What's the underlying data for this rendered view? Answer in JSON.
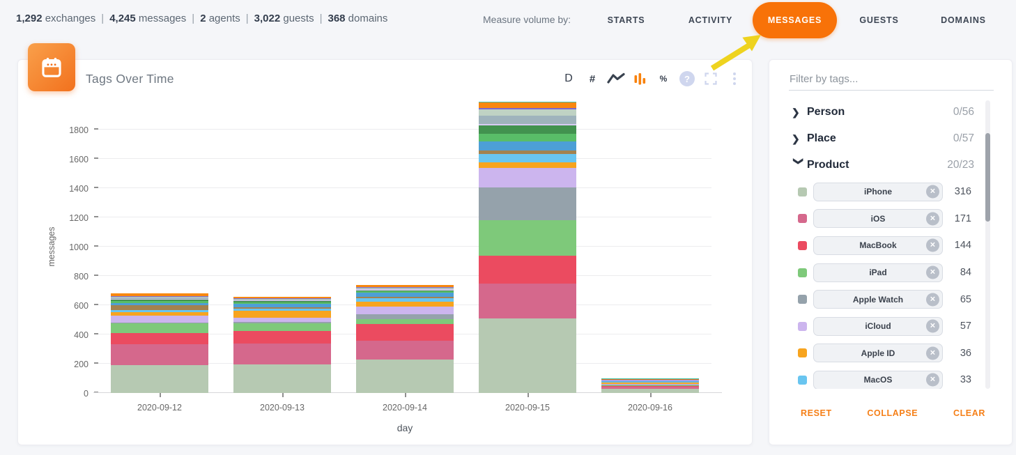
{
  "topbar": {
    "stats": [
      {
        "value": "1,292",
        "label": "exchanges"
      },
      {
        "value": "4,245",
        "label": "messages"
      },
      {
        "value": "2",
        "label": "agents"
      },
      {
        "value": "3,022",
        "label": "guests"
      },
      {
        "value": "368",
        "label": "domains"
      }
    ],
    "measure_label": "Measure volume by:",
    "tabs": [
      {
        "label": "STARTS",
        "active": false
      },
      {
        "label": "ACTIVITY",
        "active": false
      },
      {
        "label": "MESSAGES",
        "active": true
      },
      {
        "label": "GUESTS",
        "active": false
      },
      {
        "label": "DOMAINS",
        "active": false
      }
    ],
    "active_tab_color": "#f87208"
  },
  "annotation": {
    "arrow_color": "#eed31f",
    "points_to": "MESSAGES"
  },
  "calendar_button": {
    "icon": "calendar-icon",
    "color_start": "#f9a04b",
    "color_end": "#f2711d"
  },
  "chart_card": {
    "title": "Tags Over Time",
    "toolbar": {
      "day_label": "D",
      "number_label": "#",
      "percent_label": "%",
      "help_glyph": "?",
      "icons": [
        "line-chart-icon",
        "bar-chart-icon",
        "help-icon",
        "fullscreen-icon",
        "more-icon"
      ],
      "active_icon": "bar-chart-icon",
      "active_color": "#f8820d"
    }
  },
  "chart_data": {
    "type": "bar",
    "stacked": true,
    "title": "Tags Over Time",
    "xlabel": "day",
    "ylabel": "messages",
    "categories": [
      "2020-09-12",
      "2020-09-13",
      "2020-09-14",
      "2020-09-15",
      "2020-09-16"
    ],
    "ylim": [
      0,
      2000
    ],
    "ytick_step": 200,
    "ytick_max": 1800,
    "grid": true,
    "legend_position": "sidebar-right",
    "series": [
      {
        "name": "iPhone",
        "color": "#b6c9b2",
        "values": [
          192,
          197,
          230,
          511,
          30
        ]
      },
      {
        "name": "iOS",
        "color": "#d5688c",
        "values": [
          140,
          140,
          125,
          236,
          12
        ]
      },
      {
        "name": "MacBook",
        "color": "#eb4b60",
        "values": [
          79,
          85,
          115,
          192,
          8
        ]
      },
      {
        "name": "iPad",
        "color": "#7ec97a",
        "values": [
          64,
          56,
          35,
          243,
          5
        ]
      },
      {
        "name": "Apple Watch",
        "color": "#95a2ab",
        "values": [
          6,
          8,
          35,
          221,
          4
        ]
      },
      {
        "name": "iCloud",
        "color": "#ccb5ee",
        "values": [
          48,
          27,
          50,
          135,
          4
        ]
      },
      {
        "name": "Apple ID",
        "color": "#f7a41f",
        "values": [
          24,
          48,
          35,
          40,
          7
        ]
      },
      {
        "name": "MacOS",
        "color": "#69c5f0",
        "values": [
          16,
          15,
          25,
          55,
          5
        ]
      },
      {
        "name": "unlabeled-1",
        "color": "#a3824f",
        "values": [
          29,
          10,
          8,
          22,
          4
        ]
      },
      {
        "name": "unlabeled-2",
        "color": "#4d9fd6",
        "values": [
          18,
          25,
          30,
          65,
          3
        ]
      },
      {
        "name": "unlabeled-3",
        "color": "#59bd68",
        "values": [
          12,
          10,
          8,
          50,
          3
        ]
      },
      {
        "name": "unlabeled-4",
        "color": "#42924f",
        "values": [
          10,
          8,
          6,
          60,
          2
        ]
      },
      {
        "name": "unlabeled-5",
        "color": "#d9cbf4",
        "values": [
          6,
          5,
          6,
          8,
          1
        ]
      },
      {
        "name": "unlabeled-6",
        "color": "#9fb3bc",
        "values": [
          8,
          6,
          8,
          55,
          1
        ]
      },
      {
        "name": "unlabeled-7",
        "color": "#bfd2c4",
        "values": [
          5,
          4,
          5,
          45,
          2
        ]
      },
      {
        "name": "unlabeled-8",
        "color": "#7a68ce",
        "values": [
          3,
          3,
          3,
          8,
          1
        ]
      },
      {
        "name": "unlabeled-9",
        "color": "#f8880f",
        "values": [
          20,
          12,
          12,
          42,
          3
        ]
      },
      {
        "name": "unlabeled-10",
        "color": "#3fc4b0",
        "values": [
          0,
          0,
          0,
          4,
          6
        ]
      }
    ]
  },
  "sidebar": {
    "filter_placeholder": "Filter by tags...",
    "sections": [
      {
        "name": "Person",
        "count": "0/56",
        "expanded": false,
        "tags": []
      },
      {
        "name": "Place",
        "count": "0/57",
        "expanded": false,
        "tags": []
      },
      {
        "name": "Product",
        "count": "20/23",
        "expanded": true,
        "tags": [
          {
            "label": "iPhone",
            "count": 316,
            "color": "#b6c9b2"
          },
          {
            "label": "iOS",
            "count": 171,
            "color": "#d5688c"
          },
          {
            "label": "MacBook",
            "count": 144,
            "color": "#eb4b60"
          },
          {
            "label": "iPad",
            "count": 84,
            "color": "#7ec97a"
          },
          {
            "label": "Apple Watch",
            "count": 65,
            "color": "#95a2ab"
          },
          {
            "label": "iCloud",
            "count": 57,
            "color": "#ccb5ee"
          },
          {
            "label": "Apple ID",
            "count": 36,
            "color": "#f7a41f"
          },
          {
            "label": "MacOS",
            "count": 33,
            "color": "#69c5f0"
          }
        ]
      }
    ],
    "footer": [
      {
        "label": "RESET"
      },
      {
        "label": "COLLAPSE"
      },
      {
        "label": "CLEAR"
      }
    ],
    "accent": "#f57f17"
  }
}
